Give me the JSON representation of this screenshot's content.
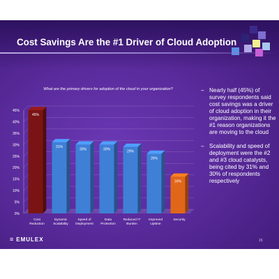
{
  "slide": {
    "title": "Cost Savings Are the #1 Driver of Cloud Adoption",
    "question": "What are the primary drivers for adoption of the cloud in your organization?",
    "bullets": [
      "Nearly half (45%) of survey respondents said cost savings was a driver of cloud adoption in their organization, making it the #1 reason organizations are moving to the cloud",
      "Scalability and speed of deployment were the #2 and #3 cloud catalysts, being cited by 31% and 30% of respondents respectively"
    ],
    "bullet_marker": "–",
    "brand": "EMULEX",
    "brand_icon": "emulex-logo-icon",
    "page_number": "15"
  },
  "colors": {
    "orange_bar": "#e0661a",
    "blue_bar": "#3f7fd6",
    "dark_red_bar": "#7a1414",
    "background": "#5a2b9c"
  },
  "chart_data": {
    "type": "bar",
    "categories": [
      [
        "Cost",
        "Reduction"
      ],
      [
        "Dynamic",
        "Scalability"
      ],
      [
        "Speed of",
        "Deployment"
      ],
      [
        "Data",
        "Protection"
      ],
      [
        "Reduced IT",
        "Burden"
      ],
      [
        "Improved",
        "Uptime"
      ],
      [
        "Security"
      ]
    ],
    "values": [
      45,
      31,
      30,
      30,
      29,
      26,
      16
    ],
    "data_labels": [
      "45%",
      "31%",
      "30%",
      "30%",
      "29%",
      "26%",
      "16%"
    ],
    "bar_colors": [
      "#7a1414",
      "#3f7fd6",
      "#3f7fd6",
      "#3f7fd6",
      "#3f7fd6",
      "#3f7fd6",
      "#e0661a"
    ],
    "yticks": [
      "0%",
      "5%",
      "10%",
      "15%",
      "20%",
      "25%",
      "30%",
      "35%",
      "40%",
      "45%"
    ],
    "ylim": [
      0,
      45
    ],
    "grid": true,
    "legend": "none",
    "title": "",
    "xlabel": "",
    "ylabel": ""
  }
}
